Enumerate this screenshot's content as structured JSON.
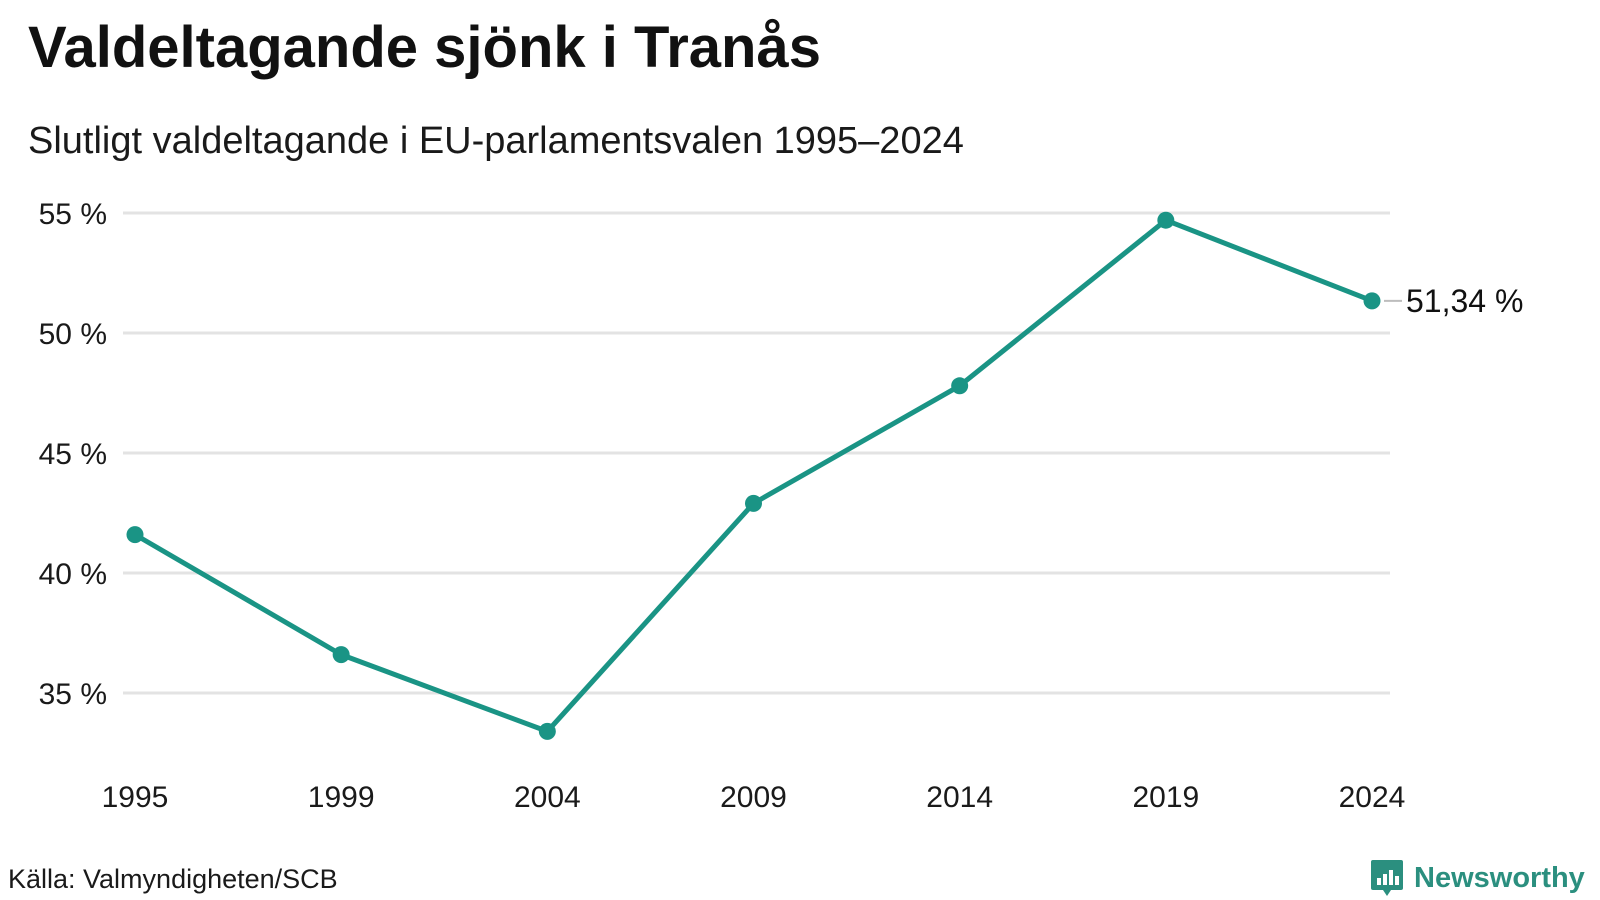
{
  "title": "Valdeltagande sjönk i Tranås",
  "subtitle": "Slutligt valdeltagande i EU-parlamentsvalen 1995–2024",
  "source": "Källa: Valmyndigheten/SCB",
  "brand": {
    "name": "Newsworthy",
    "icon": "bar-chart-badge-icon"
  },
  "colors": {
    "line": "#1a9485",
    "grid": "#e3e3e3",
    "brand": "#2b8f7f"
  },
  "chart_data": {
    "type": "line",
    "x": [
      "1995",
      "1999",
      "2004",
      "2009",
      "2014",
      "2019",
      "2024"
    ],
    "series": [
      {
        "values": [
          41.6,
          36.6,
          33.4,
          42.9,
          47.8,
          54.7,
          51.34
        ]
      }
    ],
    "yticks": [
      35,
      40,
      45,
      50,
      55
    ],
    "ytick_labels": [
      "35 %",
      "40 %",
      "45 %",
      "50 %",
      "55 %"
    ],
    "ylim": [
      32,
      56
    ],
    "grid": true,
    "end_label": "51,34 %"
  }
}
